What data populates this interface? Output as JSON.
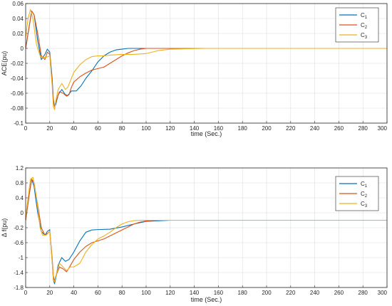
{
  "chart_data": [
    {
      "type": "line",
      "xlabel": "time (Sec.)",
      "ylabel": "ACE(pu)",
      "xlim": [
        0,
        300
      ],
      "ylim": [
        -0.1,
        0.06
      ],
      "xticks": [
        "0",
        "20",
        "40",
        "60",
        "80",
        "100",
        "120",
        "140",
        "160",
        "180",
        "200",
        "220",
        "240",
        "260",
        "280",
        "300"
      ],
      "yticks": [
        "0.06",
        "0.04",
        "0.02",
        "0",
        "-0.02",
        "-0.04",
        "-0.06",
        "-0.08",
        "-0.1"
      ],
      "grid": true,
      "legend_position": "top-right",
      "series": [
        {
          "name": "C",
          "name_sub": "1",
          "color": "#0072BD",
          "x": [
            0,
            3,
            5,
            7,
            10,
            13,
            16,
            18,
            20,
            22,
            23,
            24,
            25,
            27,
            30,
            33,
            35,
            38,
            42,
            46,
            50,
            55,
            60,
            65,
            70,
            75,
            80,
            85,
            90,
            100,
            120,
            150,
            200,
            300
          ],
          "y": [
            0,
            0.03,
            0.05,
            0.045,
            0.01,
            -0.015,
            -0.008,
            -0.001,
            -0.005,
            -0.04,
            -0.068,
            -0.078,
            -0.075,
            -0.062,
            -0.055,
            -0.062,
            -0.063,
            -0.057,
            -0.057,
            -0.05,
            -0.04,
            -0.03,
            -0.018,
            -0.01,
            -0.005,
            -0.002,
            -0.001,
            0,
            0,
            0,
            0,
            0,
            0,
            0
          ]
        },
        {
          "name": "C",
          "name_sub": "2",
          "color": "#D95319",
          "x": [
            0,
            3,
            5,
            7,
            10,
            13,
            16,
            18,
            20,
            22,
            23,
            24,
            25,
            28,
            31,
            34,
            36,
            38,
            40,
            45,
            50,
            55,
            60,
            65,
            70,
            75,
            80,
            85,
            90,
            95,
            100,
            110,
            120,
            150,
            200,
            300
          ],
          "y": [
            0,
            0.03,
            0.05,
            0.045,
            0.02,
            -0.01,
            -0.015,
            -0.005,
            -0.008,
            -0.045,
            -0.072,
            -0.078,
            -0.072,
            -0.058,
            -0.06,
            -0.064,
            -0.062,
            -0.052,
            -0.045,
            -0.038,
            -0.033,
            -0.029,
            -0.027,
            -0.025,
            -0.02,
            -0.015,
            -0.01,
            -0.006,
            -0.003,
            -0.001,
            0,
            0,
            0,
            0,
            0,
            0
          ]
        },
        {
          "name": "C",
          "name_sub": "3",
          "color": "#EDB120",
          "x": [
            0,
            2,
            4,
            6,
            9,
            12,
            14,
            17,
            20,
            22,
            23,
            24,
            25,
            27,
            30,
            33,
            35,
            38,
            40,
            45,
            50,
            55,
            60,
            65,
            70,
            80,
            90,
            100,
            110,
            120,
            150,
            200,
            300
          ],
          "y": [
            0.015,
            0.04,
            0.052,
            0.04,
            0.005,
            -0.01,
            -0.012,
            -0.012,
            -0.01,
            -0.05,
            -0.078,
            -0.082,
            -0.07,
            -0.055,
            -0.047,
            -0.055,
            -0.052,
            -0.04,
            -0.032,
            -0.022,
            -0.015,
            -0.011,
            -0.01,
            -0.01,
            -0.009,
            -0.008,
            -0.008,
            -0.007,
            -0.003,
            -0.001,
            0,
            0,
            0
          ]
        }
      ]
    },
    {
      "type": "line",
      "xlabel": "time (Sec.)",
      "ylabel": "Δ f(pu)",
      "xlim": [
        0,
        300
      ],
      "ylim": [
        -1.8,
        1.4
      ],
      "xticks": [
        "0",
        "20",
        "40",
        "60",
        "80",
        "100",
        "120",
        "140",
        "160",
        "180",
        "200",
        "220",
        "240",
        "260",
        "280",
        "300"
      ],
      "yticks": [
        "1.2",
        "0.8",
        "0.4",
        "0",
        "-0.2",
        "-0.6",
        "-1",
        "-1.4",
        "-1.8"
      ],
      "grid": true,
      "legend_position": "top-right",
      "series": [
        {
          "name": "C",
          "name_sub": "1",
          "color": "#0072BD",
          "x": [
            0,
            3,
            5,
            7,
            10,
            13,
            16,
            18,
            20,
            22,
            23,
            24,
            25,
            27,
            30,
            33,
            36,
            40,
            45,
            50,
            55,
            60,
            70,
            80,
            90,
            100,
            120,
            150,
            200,
            300
          ],
          "y": [
            0,
            0.7,
            1.1,
            0.9,
            0.2,
            -0.3,
            -0.4,
            -0.3,
            -0.25,
            -1.1,
            -1.6,
            -1.7,
            -1.55,
            -1.2,
            -1.0,
            -1.1,
            -1.05,
            -0.85,
            -0.55,
            -0.32,
            -0.26,
            -0.25,
            -0.24,
            -0.18,
            -0.1,
            -0.03,
            0,
            0,
            0,
            0
          ]
        },
        {
          "name": "C",
          "name_sub": "2",
          "color": "#D95319",
          "x": [
            0,
            3,
            5,
            7,
            10,
            13,
            16,
            18,
            20,
            22,
            23,
            24,
            25,
            28,
            31,
            34,
            37,
            40,
            45,
            50,
            55,
            60,
            65,
            70,
            80,
            90,
            95,
            100,
            110,
            120,
            150,
            200,
            300
          ],
          "y": [
            0,
            0.7,
            1.1,
            1.0,
            0.4,
            -0.2,
            -0.4,
            -0.35,
            -0.3,
            -1.0,
            -1.5,
            -1.62,
            -1.5,
            -1.25,
            -1.3,
            -1.38,
            -1.22,
            -1.05,
            -0.85,
            -0.7,
            -0.6,
            -0.55,
            -0.5,
            -0.42,
            -0.26,
            -0.1,
            -0.05,
            -0.02,
            0,
            0,
            0,
            0,
            0
          ]
        },
        {
          "name": "C",
          "name_sub": "3",
          "color": "#EDB120",
          "x": [
            0,
            2,
            4,
            6,
            9,
            12,
            14,
            17,
            20,
            22,
            23,
            24,
            25,
            28,
            31,
            34,
            37,
            40,
            45,
            50,
            55,
            60,
            65,
            70,
            75,
            80,
            85,
            90,
            95,
            100,
            120,
            150,
            200,
            300
          ],
          "y": [
            0.1,
            0.6,
            1.1,
            1.15,
            0.6,
            -0.2,
            -0.4,
            -0.4,
            -0.3,
            -1.1,
            -1.6,
            -1.65,
            -1.5,
            -1.15,
            -1.25,
            -1.35,
            -1.25,
            -1.25,
            -1.15,
            -0.85,
            -0.65,
            -0.5,
            -0.42,
            -0.32,
            -0.2,
            -0.1,
            -0.04,
            -0.01,
            0,
            0,
            0,
            0,
            0,
            0
          ]
        }
      ]
    }
  ]
}
